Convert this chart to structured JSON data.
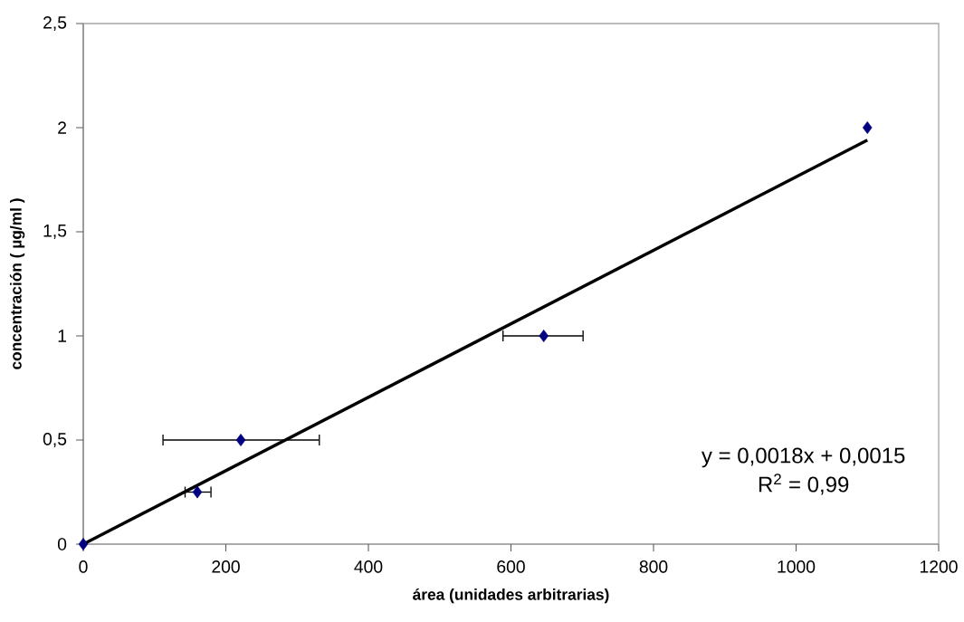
{
  "chart_data": {
    "type": "scatter",
    "xlabel": "área (unidades arbitrarias)",
    "ylabel": "concentración ( µg/ml )",
    "xlim": [
      0,
      1200
    ],
    "ylim": [
      0,
      2.5
    ],
    "xticks": [
      0,
      200,
      400,
      600,
      800,
      1000,
      1200
    ],
    "yticks": [
      0,
      {
        "value": 0.5,
        "label": "0,5"
      },
      1,
      {
        "value": 1.5,
        "label": "1,5"
      },
      2,
      {
        "value": 2.5,
        "label": "2,5"
      }
    ],
    "grid": false,
    "series": [
      {
        "marker": "diamond",
        "color": "#000080",
        "x": [
          0,
          160,
          221,
          646,
          1100
        ],
        "values": [
          0,
          0.25,
          0.5,
          1,
          2
        ],
        "xerrors": [
          null,
          [
            142,
            180
          ],
          [
            111,
            332
          ],
          [
            588,
            702
          ],
          null
        ]
      },
      {
        "type": "line",
        "color": "#000000",
        "line_style": "solid",
        "x": [
          0,
          1100
        ],
        "values": [
          0,
          1.94
        ]
      }
    ],
    "annotations": [
      "y = 0,0018x + 0,0015",
      "R$^{2}$ = 0,99"
    ]
  }
}
